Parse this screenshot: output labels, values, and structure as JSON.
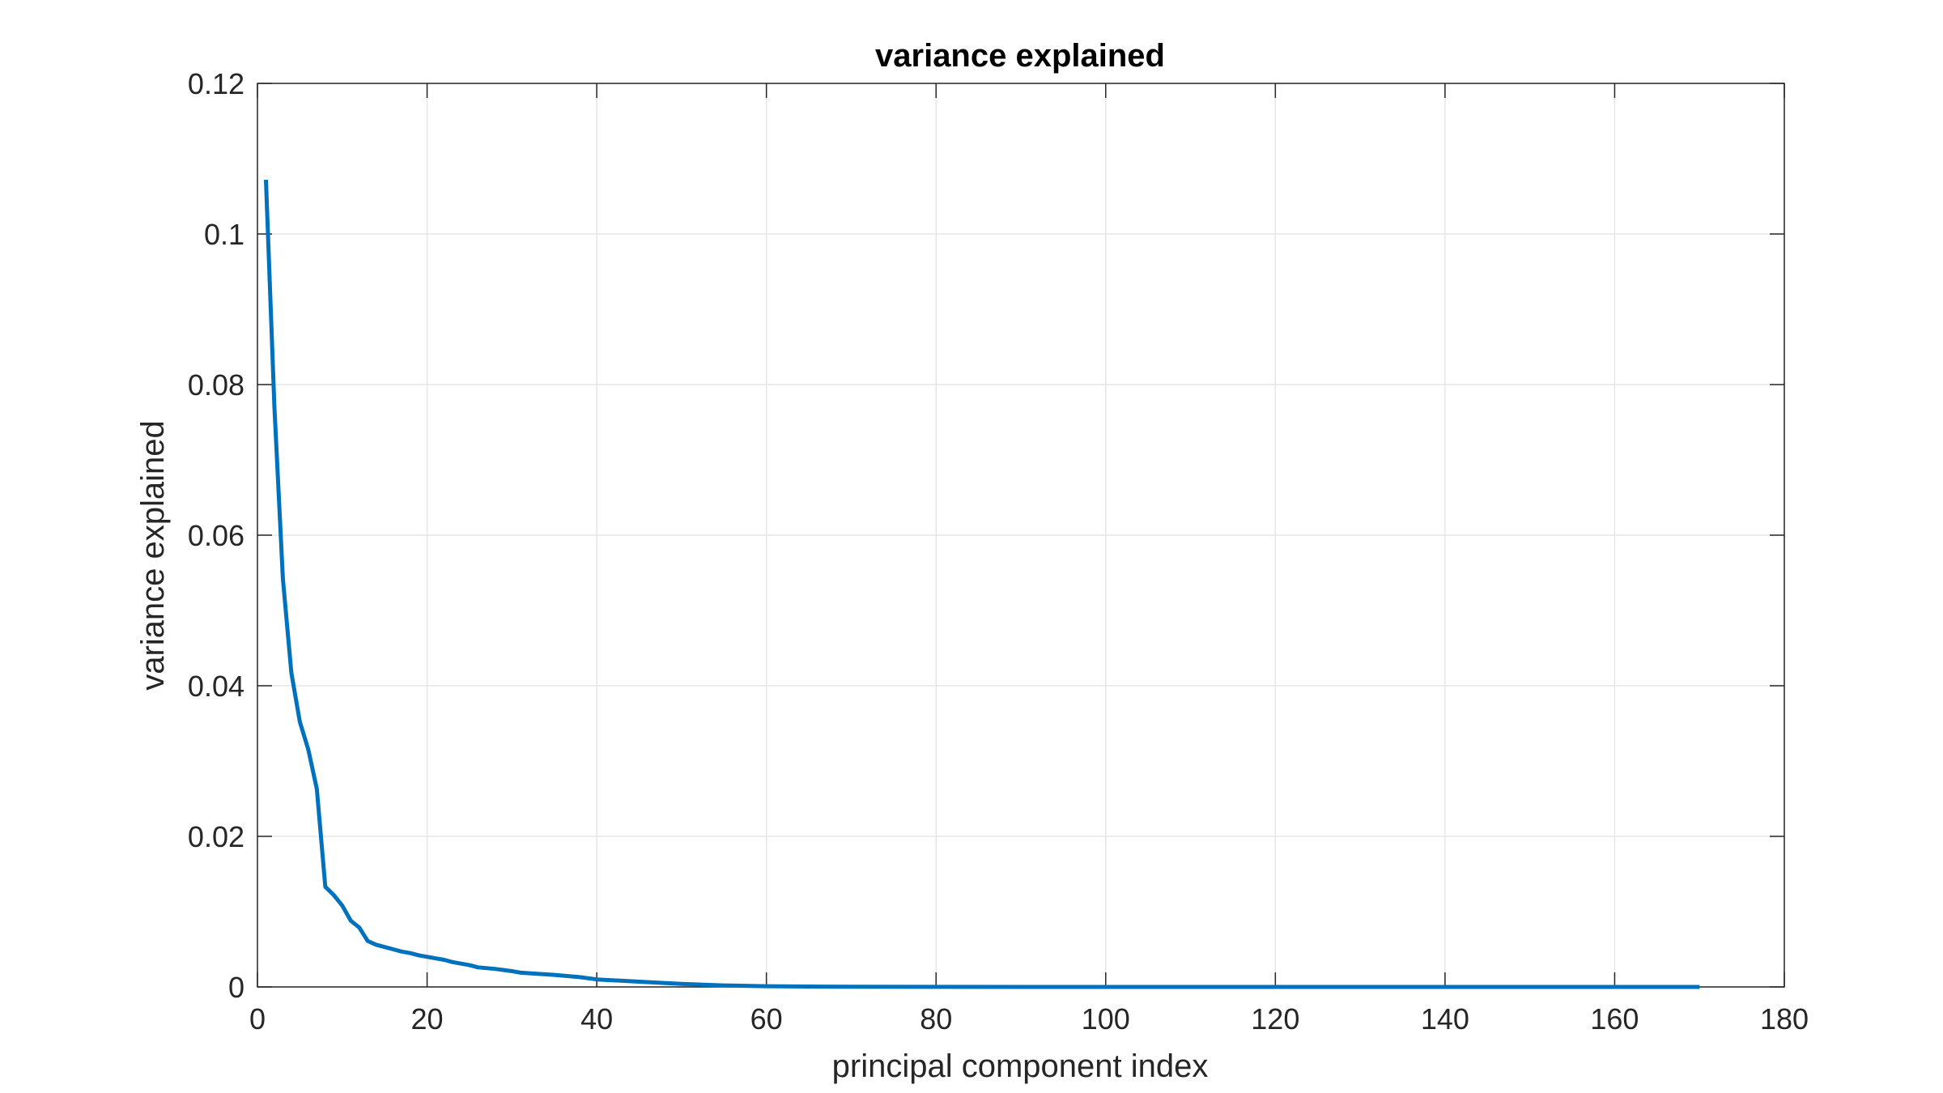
{
  "chart_data": {
    "type": "line",
    "title": "variance explained",
    "xlabel": "principal component index",
    "ylabel": "variance explained",
    "xlim": [
      0,
      180
    ],
    "ylim": [
      0,
      0.12
    ],
    "xticks": [
      0,
      20,
      40,
      60,
      80,
      100,
      120,
      140,
      160,
      180
    ],
    "yticks": [
      0,
      0.02,
      0.04,
      0.06,
      0.08,
      0.1,
      0.12
    ],
    "xtick_labels": [
      "0",
      "20",
      "40",
      "60",
      "80",
      "100",
      "120",
      "140",
      "160",
      "180"
    ],
    "ytick_labels": [
      "0",
      "0.02",
      "0.04",
      "0.06",
      "0.08",
      "0.1",
      "0.12"
    ],
    "grid": true,
    "line_color": "#0072BD",
    "series": [
      {
        "x": [
          1,
          2,
          3,
          4,
          5,
          6,
          7,
          8,
          9,
          10,
          11,
          12,
          13,
          14,
          15,
          16,
          17,
          18,
          19,
          20,
          22,
          23,
          25,
          26,
          28,
          30,
          31,
          35,
          38,
          40,
          45,
          50,
          55,
          60,
          65,
          70,
          80,
          100,
          130,
          170
        ],
        "y": [
          0.1072,
          0.077,
          0.0542,
          0.0417,
          0.0352,
          0.0315,
          0.0263,
          0.0133,
          0.0122,
          0.0108,
          0.0088,
          0.0079,
          0.0061,
          0.0056,
          0.0053,
          0.005,
          0.0047,
          0.0045,
          0.0042,
          0.004,
          0.0036,
          0.0033,
          0.0029,
          0.0026,
          0.0024,
          0.0021,
          0.0019,
          0.0016,
          0.0013,
          0.001,
          0.0007,
          0.0004,
          0.0002,
          0.0001,
          5e-05,
          2e-05,
          1e-05,
          0.0,
          0.0,
          0.0
        ]
      }
    ]
  }
}
